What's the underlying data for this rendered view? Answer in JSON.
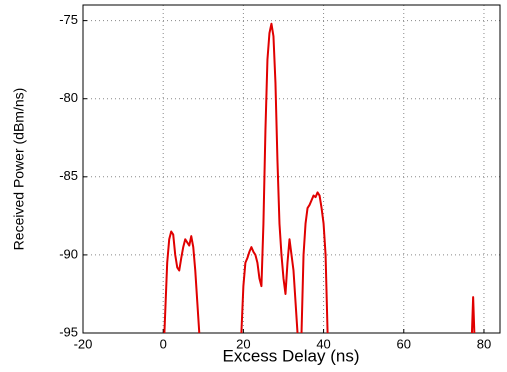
{
  "chart_data": {
    "type": "line",
    "x_label": "Excess Delay (ns)",
    "y_label": "Received Power (dBm/ns)",
    "x": [
      0.3,
      1,
      1.5,
      2,
      2.5,
      3,
      3.5,
      4,
      4.5,
      5,
      5.5,
      6,
      6.5,
      7,
      7.5,
      8,
      8.5,
      9,
      null,
      19.5,
      20,
      20.5,
      21,
      21.5,
      22,
      22.5,
      23,
      23.5,
      24,
      24.5,
      25,
      25.5,
      26,
      26.5,
      27,
      27.5,
      28,
      28.5,
      29,
      29.5,
      30,
      30.5,
      31,
      31.5,
      32,
      32.5,
      33,
      33.5,
      null,
      34.5,
      35,
      35.5,
      36,
      36.5,
      37,
      37.5,
      38,
      38.5,
      39,
      39.5,
      40,
      40.5,
      41,
      null,
      77,
      77.3,
      77.6
    ],
    "values": [
      -95,
      -90.5,
      -89,
      -88.5,
      -88.7,
      -90,
      -90.8,
      -91,
      -90.2,
      -89.5,
      -89,
      -89.2,
      -89.4,
      -88.8,
      -89.5,
      -91,
      -93,
      -95,
      null,
      -95,
      -92,
      -90.5,
      -90.2,
      -89.8,
      -89.5,
      -89.8,
      -90,
      -90.5,
      -91.5,
      -92,
      -88,
      -82,
      -77.5,
      -75.8,
      -75.2,
      -76,
      -79,
      -84,
      -88,
      -90,
      -91.5,
      -92.5,
      -90.5,
      -89,
      -90,
      -91,
      -93,
      -95,
      null,
      -95,
      -90,
      -88,
      -87,
      -86.8,
      -86.5,
      -86.2,
      -86.3,
      -86,
      -86.2,
      -87,
      -88,
      -90,
      -95,
      null,
      -95,
      -92.7,
      -95
    ],
    "color": "#e00000",
    "xlim": [
      -20,
      84
    ],
    "ylim": [
      -95,
      -74
    ],
    "xticks": [
      -20,
      0,
      20,
      40,
      60,
      80
    ],
    "yticks": [
      -95,
      -90,
      -85,
      -80,
      -75
    ],
    "grid": true
  }
}
